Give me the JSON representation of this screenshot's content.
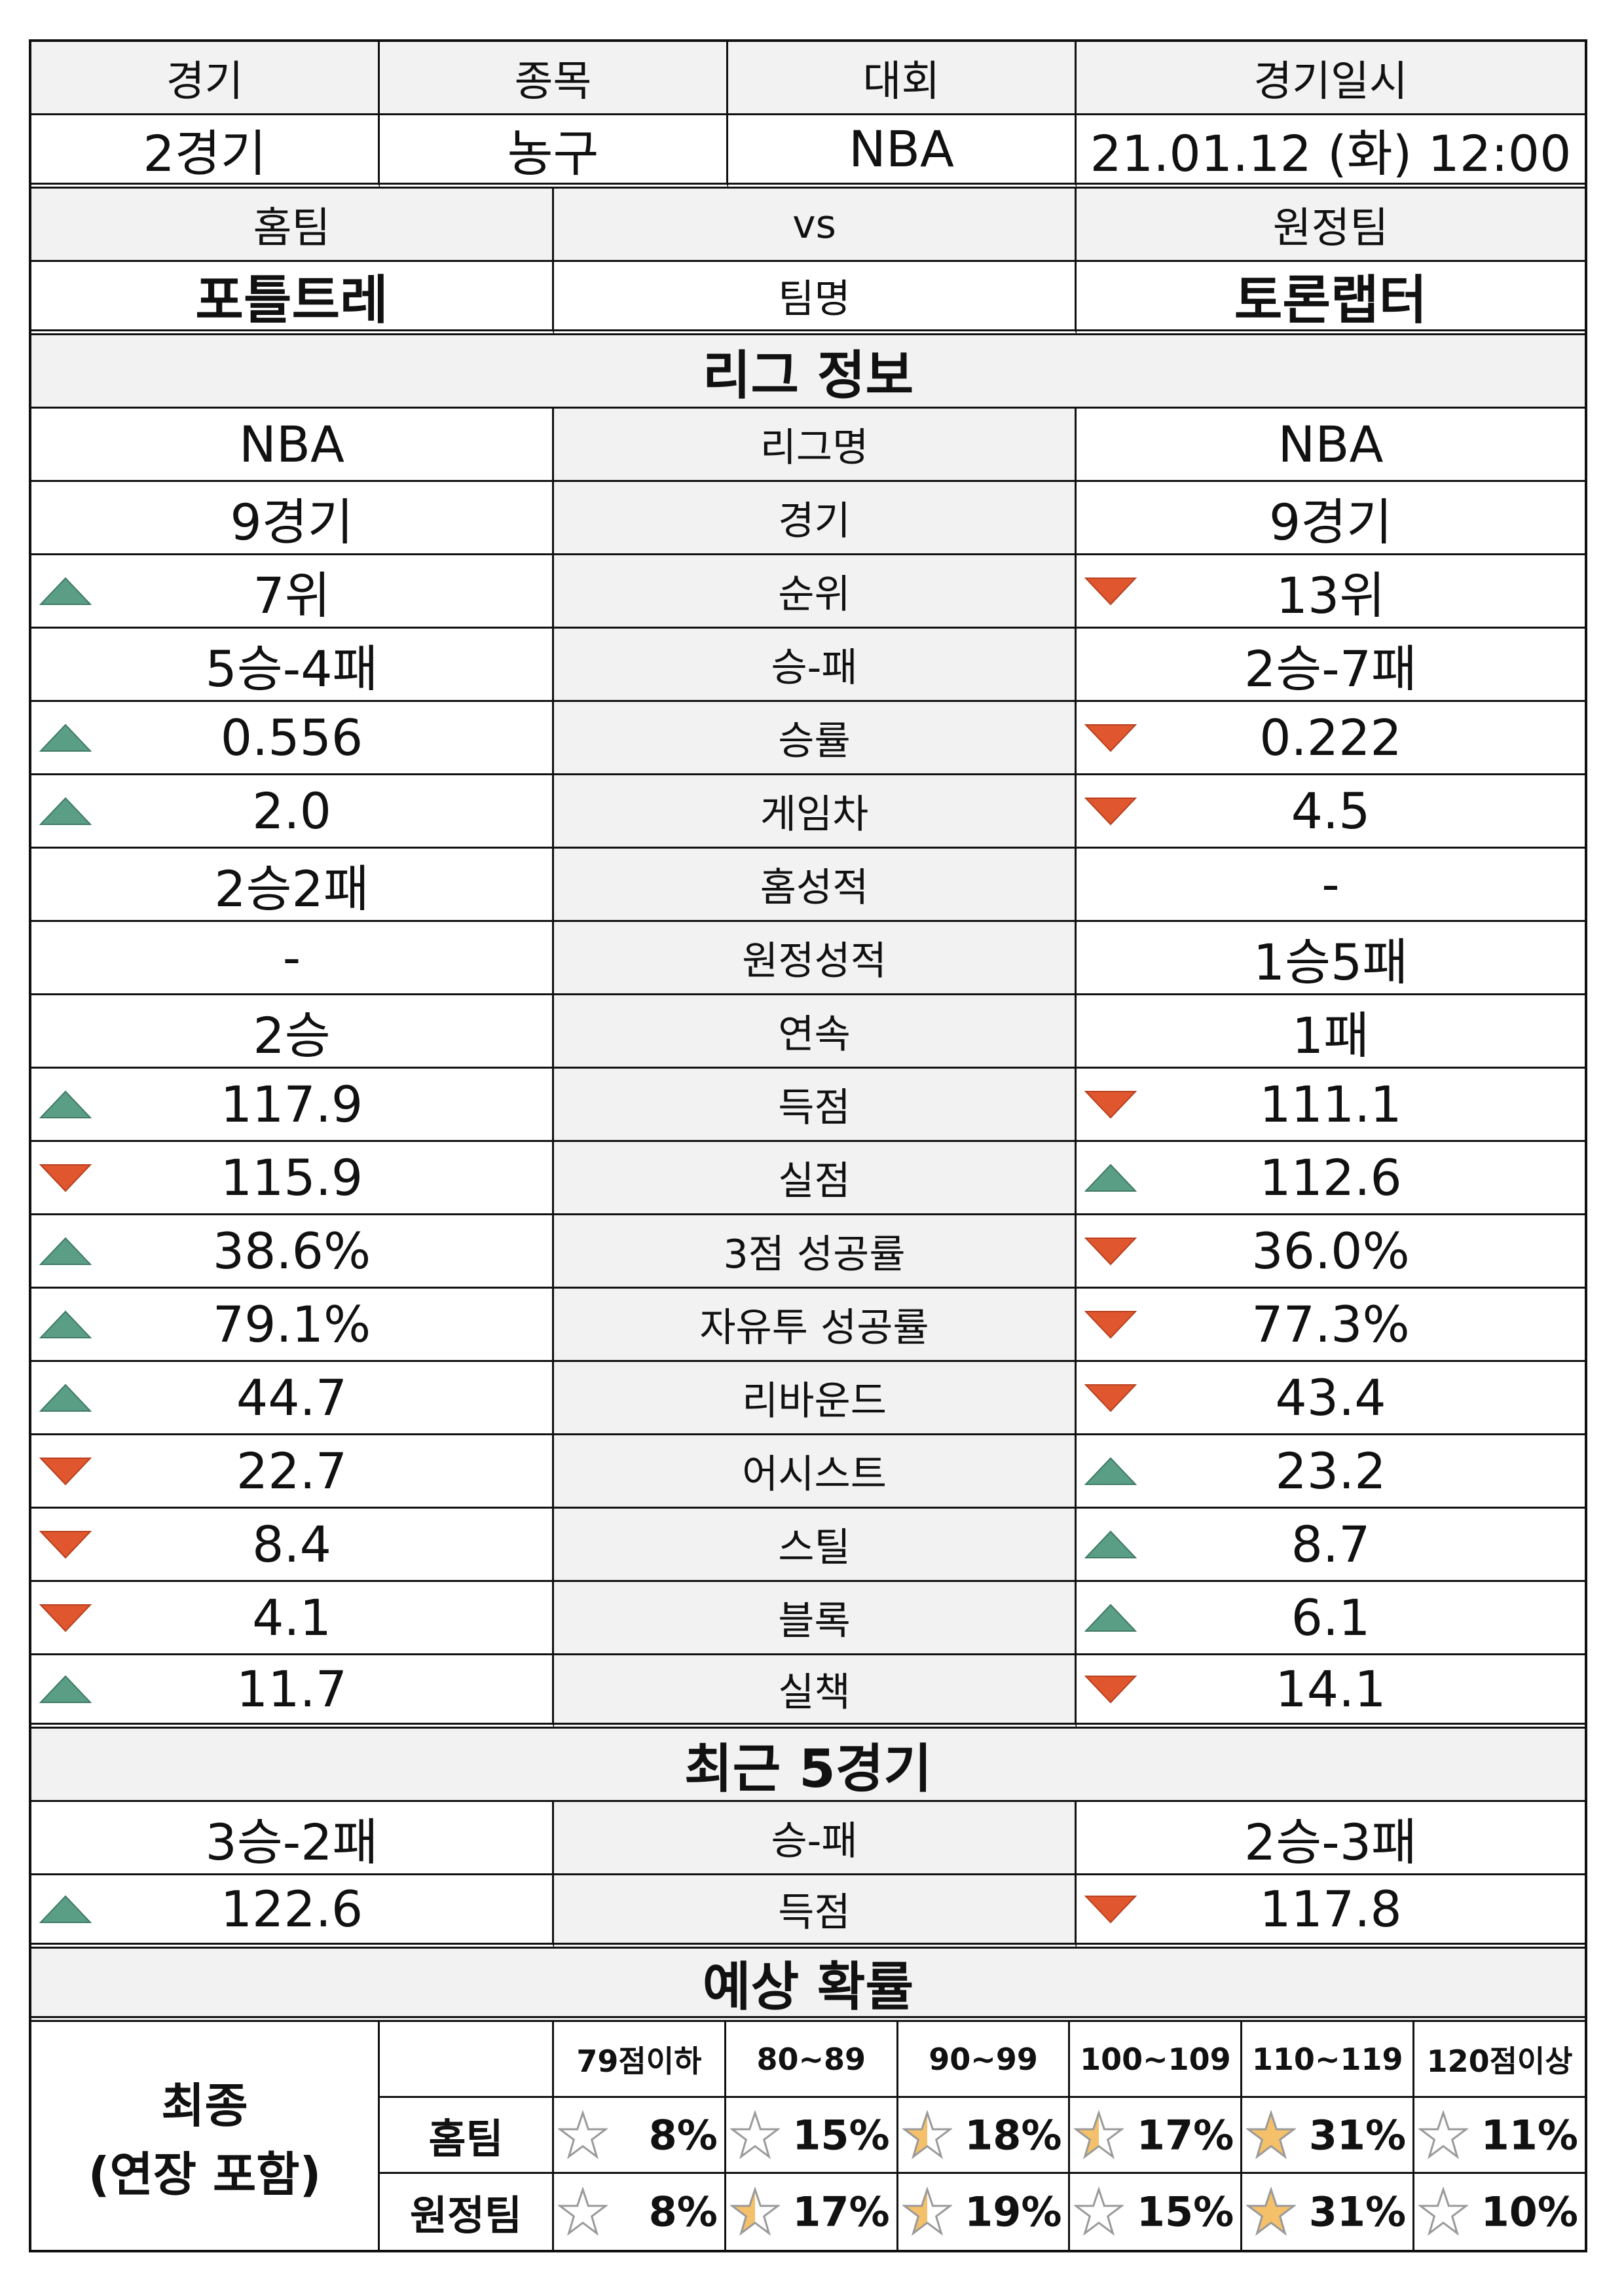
{
  "header": {
    "columns": [
      "경기",
      "종목",
      "대회",
      "경기일시"
    ],
    "values": [
      "2경기",
      "농구",
      "NBA",
      "21.01.12 (화) 12:00"
    ]
  },
  "teams": {
    "home_label": "홈팀",
    "vs_label": "vs",
    "away_label": "원정팀",
    "home_name": "포틀트레",
    "name_label": "팀명",
    "away_name": "토론랩터"
  },
  "league_section": {
    "title": "리그 정보",
    "rows": [
      {
        "label": "리그명",
        "home": "NBA",
        "away": "NBA",
        "home_arrow": "none",
        "away_arrow": "none"
      },
      {
        "label": "경기",
        "home": "9경기",
        "away": "9경기",
        "home_arrow": "none",
        "away_arrow": "none"
      },
      {
        "label": "순위",
        "home": "7위",
        "away": "13위",
        "home_arrow": "up",
        "away_arrow": "down"
      },
      {
        "label": "승-패",
        "home": "5승-4패",
        "away": "2승-7패",
        "home_arrow": "none",
        "away_arrow": "none"
      },
      {
        "label": "승률",
        "home": "0.556",
        "away": "0.222",
        "home_arrow": "up",
        "away_arrow": "down"
      },
      {
        "label": "게임차",
        "home": "2.0",
        "away": "4.5",
        "home_arrow": "up",
        "away_arrow": "down"
      },
      {
        "label": "홈성적",
        "home": "2승2패",
        "away": "-",
        "home_arrow": "none",
        "away_arrow": "none"
      },
      {
        "label": "원정성적",
        "home": "-",
        "away": "1승5패",
        "home_arrow": "none",
        "away_arrow": "none"
      },
      {
        "label": "연속",
        "home": "2승",
        "away": "1패",
        "home_arrow": "none",
        "away_arrow": "none"
      },
      {
        "label": "득점",
        "home": "117.9",
        "away": "111.1",
        "home_arrow": "up",
        "away_arrow": "down"
      },
      {
        "label": "실점",
        "home": "115.9",
        "away": "112.6",
        "home_arrow": "down",
        "away_arrow": "up"
      },
      {
        "label": "3점 성공률",
        "home": "38.6%",
        "away": "36.0%",
        "home_arrow": "up",
        "away_arrow": "down"
      },
      {
        "label": "자유투 성공률",
        "home": "79.1%",
        "away": "77.3%",
        "home_arrow": "up",
        "away_arrow": "down"
      },
      {
        "label": "리바운드",
        "home": "44.7",
        "away": "43.4",
        "home_arrow": "up",
        "away_arrow": "down"
      },
      {
        "label": "어시스트",
        "home": "22.7",
        "away": "23.2",
        "home_arrow": "down",
        "away_arrow": "up"
      },
      {
        "label": "스틸",
        "home": "8.4",
        "away": "8.7",
        "home_arrow": "down",
        "away_arrow": "up"
      },
      {
        "label": "블록",
        "home": "4.1",
        "away": "6.1",
        "home_arrow": "down",
        "away_arrow": "up"
      },
      {
        "label": "실책",
        "home": "11.7",
        "away": "14.1",
        "home_arrow": "up",
        "away_arrow": "down"
      }
    ]
  },
  "recent_section": {
    "title": "최근 5경기",
    "rows": [
      {
        "label": "승-패",
        "home": "3승-2패",
        "away": "2승-3패",
        "home_arrow": "none",
        "away_arrow": "none"
      },
      {
        "label": "득점",
        "home": "122.6",
        "away": "117.8",
        "home_arrow": "up",
        "away_arrow": "down"
      }
    ]
  },
  "probability_section": {
    "title": "예상 확률",
    "final_label_line1": "최종",
    "final_label_line2": "(연장 포함)",
    "ranges": [
      "79점이하",
      "80~89",
      "90~99",
      "100~109",
      "110~119",
      "120점이상"
    ],
    "rows": [
      {
        "team": "홈팀",
        "percents": [
          "8%",
          "15%",
          "18%",
          "17%",
          "31%",
          "11%"
        ],
        "fill": [
          0,
          0,
          0.5,
          0.5,
          1,
          0
        ]
      },
      {
        "team": "원정팀",
        "percents": [
          "8%",
          "17%",
          "19%",
          "15%",
          "31%",
          "10%"
        ],
        "fill": [
          0,
          0.5,
          0.5,
          0,
          1,
          0
        ]
      }
    ]
  },
  "colors": {
    "up_arrow": "#5b9e86",
    "down_arrow": "#e0562e",
    "star_fill": "#f4c06a",
    "star_stroke": "#9a9a9a",
    "section_bg": "#f2f2f2"
  }
}
